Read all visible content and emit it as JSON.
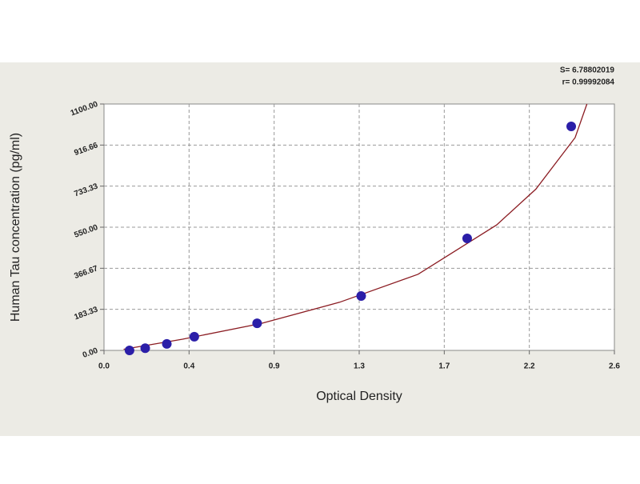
{
  "chart_data": {
    "type": "scatter",
    "xlabel": "Optical Density",
    "ylabel": "Human Tau concentration (pg/ml)",
    "annotations": [
      "S= 6.78802019",
      "r= 0.99992084"
    ],
    "xlim": [
      0,
      2.6
    ],
    "xticks": [
      {
        "value": 0,
        "label": "0.0"
      },
      {
        "value": 0.4333,
        "label": "0.4"
      },
      {
        "value": 0.8667,
        "label": "0.9"
      },
      {
        "value": 1.3,
        "label": "1.3"
      },
      {
        "value": 1.7333,
        "label": "1.7"
      },
      {
        "value": 2.1667,
        "label": "2.2"
      },
      {
        "value": 2.6,
        "label": "2.6"
      }
    ],
    "ylim": [
      0,
      1100
    ],
    "yticks": [
      {
        "value": 0,
        "label": "0.00"
      },
      183.33,
      366.67,
      {
        "value": 550,
        "label": "550.00"
      },
      733.33,
      916.66,
      {
        "value": 1100,
        "label": "1100.00"
      }
    ],
    "grid": true,
    "series": [
      {
        "type": "scatter",
        "color": "#2b1ea8",
        "x": [
          0.13,
          0.21,
          0.32,
          0.46,
          0.78,
          1.31,
          1.85,
          2.38
        ],
        "values": [
          0,
          10,
          29,
          61,
          121,
          243,
          500,
          1000
        ]
      },
      {
        "type": "line",
        "color": "#8b1c22",
        "x": [
          0.1,
          0.4,
          0.8,
          1.2,
          1.6,
          2.0,
          2.2,
          2.4,
          2.46
        ],
        "values": [
          5,
          50,
          120,
          215,
          340,
          560,
          720,
          950,
          1100
        ]
      }
    ]
  }
}
